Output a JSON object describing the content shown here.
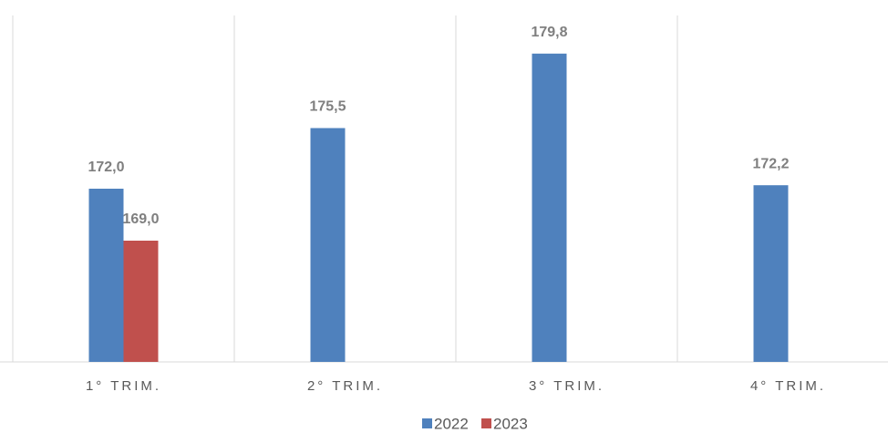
{
  "chart_data": {
    "type": "bar",
    "categories": [
      "1° TRIM.",
      "2° TRIM.",
      "3° TRIM.",
      "4° TRIM."
    ],
    "series": [
      {
        "name": "2022",
        "color": "#4f81bd",
        "values": [
          172.0,
          175.5,
          179.8,
          172.2
        ],
        "value_labels": [
          "172,0",
          "175,5",
          "179,8",
          "172,2"
        ]
      },
      {
        "name": "2023",
        "color": "#c0504d",
        "values": [
          169.0,
          null,
          null,
          null
        ],
        "value_labels": [
          "169,0",
          null,
          null,
          null
        ]
      }
    ],
    "ylim": [
      162,
      182
    ]
  }
}
